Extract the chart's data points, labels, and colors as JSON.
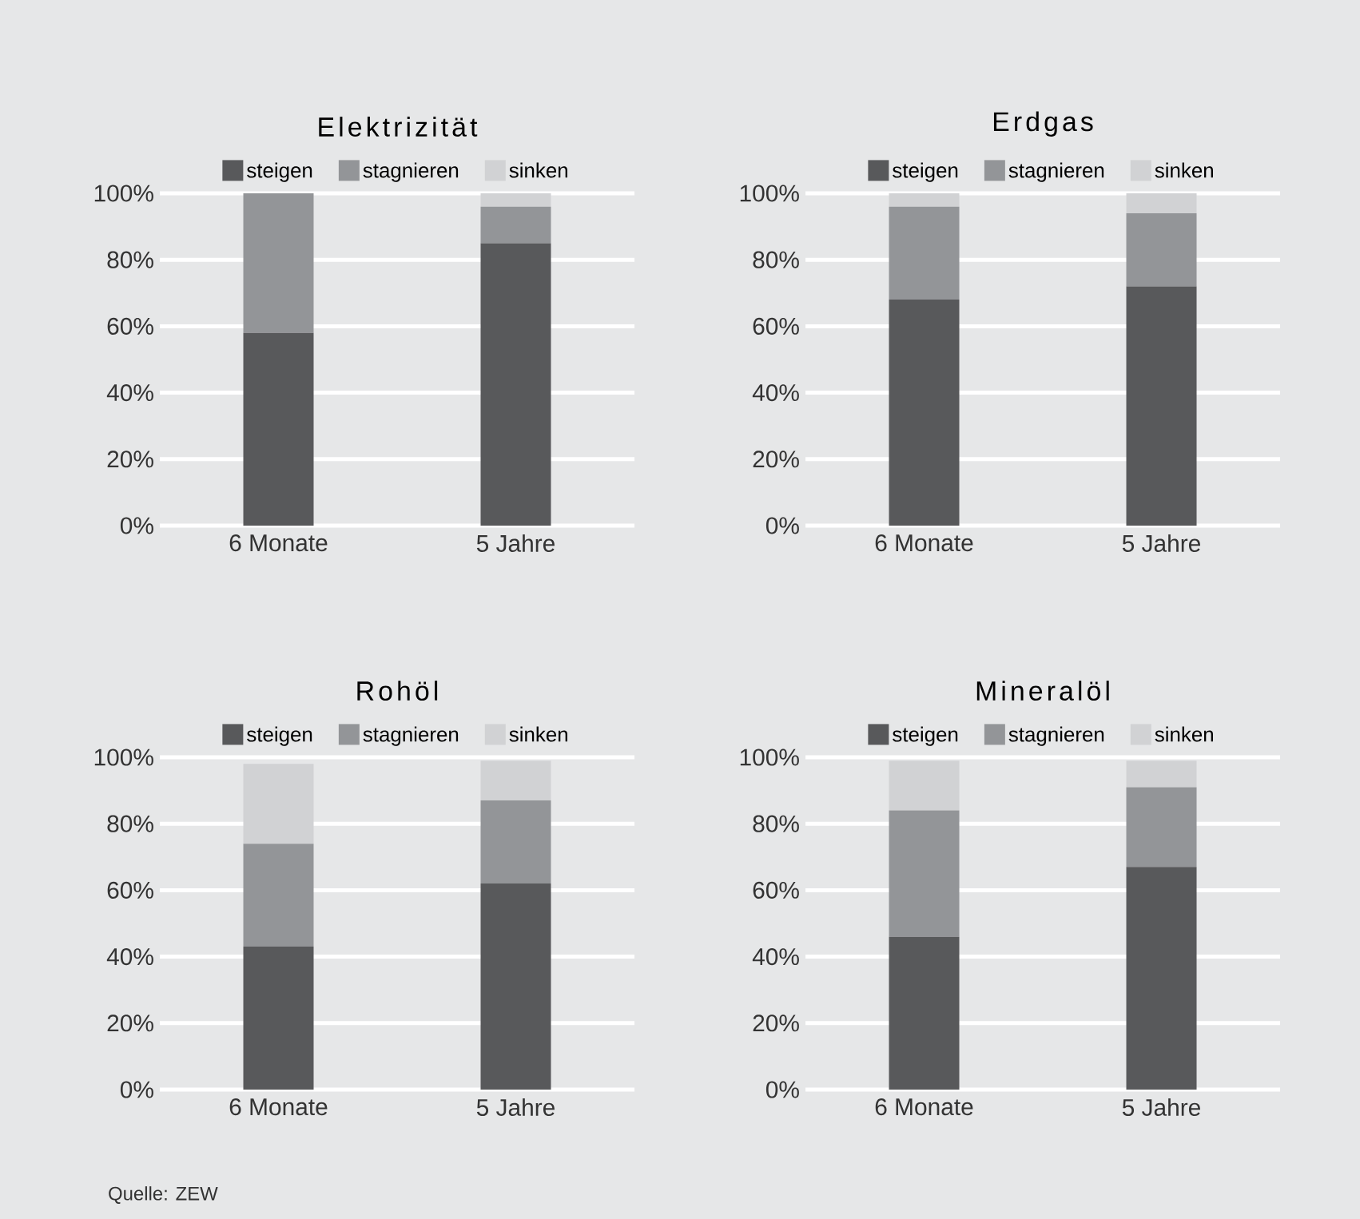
{
  "chart_data": [
    {
      "type": "bar",
      "title": "Elektrizität",
      "stacked": true,
      "legend": "top",
      "grid": "y",
      "categories": [
        "6 Monate",
        "5 Jahre"
      ],
      "ylim": [
        0,
        100
      ],
      "yticks": [
        {
          "value": 0,
          "label": "0%"
        },
        {
          "value": 20,
          "label": "20%"
        },
        {
          "value": 40,
          "label": "40%"
        },
        {
          "value": 60,
          "label": "60%"
        },
        {
          "value": 80,
          "label": "80%"
        },
        {
          "value": 100,
          "label": "100%"
        }
      ],
      "series": [
        {
          "name": "steigen",
          "color": "#58595b",
          "values": [
            58,
            85
          ]
        },
        {
          "name": "stagnieren",
          "color": "#939598",
          "values": [
            42,
            11
          ]
        },
        {
          "name": "sinken",
          "color": "#d1d2d4",
          "values": [
            0,
            4
          ]
        }
      ]
    },
    {
      "type": "bar",
      "title": "Erdgas",
      "stacked": true,
      "legend": "top",
      "grid": "y",
      "categories": [
        "6 Monate",
        "5 Jahre"
      ],
      "ylim": [
        0,
        100
      ],
      "yticks": [
        {
          "value": 0,
          "label": "0%"
        },
        {
          "value": 20,
          "label": "20%"
        },
        {
          "value": 40,
          "label": "40%"
        },
        {
          "value": 60,
          "label": "60%"
        },
        {
          "value": 80,
          "label": "80%"
        },
        {
          "value": 100,
          "label": "100%"
        }
      ],
      "series": [
        {
          "name": "steigen",
          "color": "#58595b",
          "values": [
            68,
            72
          ]
        },
        {
          "name": "stagnieren",
          "color": "#939598",
          "values": [
            28,
            22
          ]
        },
        {
          "name": "sinken",
          "color": "#d1d2d4",
          "values": [
            4,
            6
          ]
        }
      ]
    },
    {
      "type": "bar",
      "title": "Rohöl",
      "stacked": true,
      "legend": "top",
      "grid": "y",
      "categories": [
        "6 Monate",
        "5 Jahre"
      ],
      "ylim": [
        0,
        100
      ],
      "yticks": [
        {
          "value": 0,
          "label": "0%"
        },
        {
          "value": 20,
          "label": "20%"
        },
        {
          "value": 40,
          "label": "40%"
        },
        {
          "value": 60,
          "label": "60%"
        },
        {
          "value": 80,
          "label": "80%"
        },
        {
          "value": 100,
          "label": "100%"
        }
      ],
      "series": [
        {
          "name": "steigen",
          "color": "#58595b",
          "values": [
            43,
            62
          ]
        },
        {
          "name": "stagnieren",
          "color": "#939598",
          "values": [
            31,
            25
          ]
        },
        {
          "name": "sinken",
          "color": "#d1d2d4",
          "values": [
            24,
            12
          ]
        }
      ]
    },
    {
      "type": "bar",
      "title": "Mineralöl",
      "stacked": true,
      "legend": "top",
      "grid": "y",
      "categories": [
        "6 Monate",
        "5 Jahre"
      ],
      "ylim": [
        0,
        100
      ],
      "yticks": [
        {
          "value": 0,
          "label": "0%"
        },
        {
          "value": 20,
          "label": "20%"
        },
        {
          "value": 40,
          "label": "40%"
        },
        {
          "value": 60,
          "label": "60%"
        },
        {
          "value": 80,
          "label": "80%"
        },
        {
          "value": 100,
          "label": "100%"
        }
      ],
      "series": [
        {
          "name": "steigen",
          "color": "#58595b",
          "values": [
            46,
            67
          ]
        },
        {
          "name": "stagnieren",
          "color": "#939598",
          "values": [
            38,
            24
          ]
        },
        {
          "name": "sinken",
          "color": "#d1d2d4",
          "values": [
            15,
            8
          ]
        }
      ],
      "annotations": [
        "Quelle: ZEW"
      ]
    }
  ]
}
